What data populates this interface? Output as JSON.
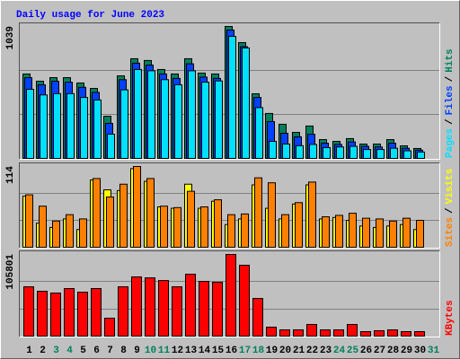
{
  "legend_separator": "/",
  "chart_data": [
    {
      "type": "bar",
      "title": "Daily usage for June 2023",
      "ylim": [
        0,
        1039
      ],
      "yticks": [
        1039
      ],
      "series": [
        {
          "name": "Hits",
          "color": "#00805c",
          "values": [
            665,
            608,
            636,
            636,
            594,
            551,
            332,
            650,
            785,
            771,
            700,
            665,
            785,
            672,
            665,
            1039,
            912,
            509,
            354,
            269,
            205,
            255,
            148,
            134,
            156,
            113,
            113,
            148,
            99,
            78,
            null
          ]
        },
        {
          "name": "Files",
          "color": "#0040ff",
          "values": [
            636,
            580,
            608,
            600,
            560,
            520,
            276,
            620,
            750,
            735,
            665,
            630,
            745,
            640,
            630,
            1011,
            880,
            480,
            290,
            198,
            170,
            190,
            120,
            110,
            130,
            95,
            90,
            120,
            80,
            65,
            null
          ]
        },
        {
          "name": "Pages",
          "color": "#00e0ff",
          "values": [
            544,
            500,
            510,
            510,
            480,
            460,
            191,
            540,
            700,
            690,
            620,
            580,
            690,
            600,
            610,
            961,
            870,
            400,
            134,
            113,
            100,
            110,
            85,
            90,
            95,
            70,
            70,
            80,
            60,
            50,
            null
          ]
        }
      ]
    },
    {
      "type": "bar",
      "ylim": [
        0,
        114
      ],
      "yticks": [
        114
      ],
      "series": [
        {
          "name": "Visits",
          "color": "#ffff00",
          "values": [
            72,
            34,
            28,
            40,
            25,
            95,
            81,
            80,
            111,
            93,
            57,
            55,
            89,
            55,
            65,
            32,
            40,
            88,
            55,
            40,
            61,
            88,
            40,
            42,
            38,
            30,
            28,
            30,
            32,
            25,
            null
          ]
        },
        {
          "name": "Sites",
          "color": "#ff8000",
          "values": [
            74,
            58,
            37,
            46,
            40,
            97,
            71,
            89,
            114,
            97,
            58,
            56,
            79,
            57,
            67,
            46,
            47,
            98,
            91,
            46,
            63,
            92,
            43,
            45,
            48,
            41,
            40,
            37,
            41,
            38,
            null
          ]
        }
      ]
    },
    {
      "type": "bar",
      "ylim": [
        0,
        105801
      ],
      "yticks": [
        105801
      ],
      "categories": [
        "1",
        "2",
        "3",
        "4",
        "5",
        "6",
        "7",
        "8",
        "9",
        "10",
        "11",
        "12",
        "13",
        "14",
        "15",
        "16",
        "17",
        "18",
        "19",
        "20",
        "21",
        "22",
        "23",
        "24",
        "25",
        "26",
        "27",
        "28",
        "29",
        "30",
        "31"
      ],
      "category_colors": [
        "#000000",
        "#000000",
        "#00805c",
        "#00805c",
        "#000000",
        "#000000",
        "#000000",
        "#000000",
        "#000000",
        "#00805c",
        "#00805c",
        "#000000",
        "#000000",
        "#000000",
        "#000000",
        "#000000",
        "#00805c",
        "#00805c",
        "#000000",
        "#000000",
        "#000000",
        "#000000",
        "#000000",
        "#00805c",
        "#00805c",
        "#000000",
        "#000000",
        "#000000",
        "#000000",
        "#000000",
        "#00805c"
      ],
      "series": [
        {
          "name": "KBytes",
          "color": "#ff0000",
          "values": [
            63900,
            58100,
            55800,
            61600,
            56900,
            61600,
            23200,
            63900,
            76700,
            75500,
            72000,
            63900,
            80200,
            70900,
            69700,
            105801,
            91800,
            48800,
            11600,
            8100,
            8100,
            15100,
            8100,
            8100,
            15100,
            5800,
            7000,
            8100,
            5800,
            5800,
            null
          ]
        }
      ]
    }
  ]
}
